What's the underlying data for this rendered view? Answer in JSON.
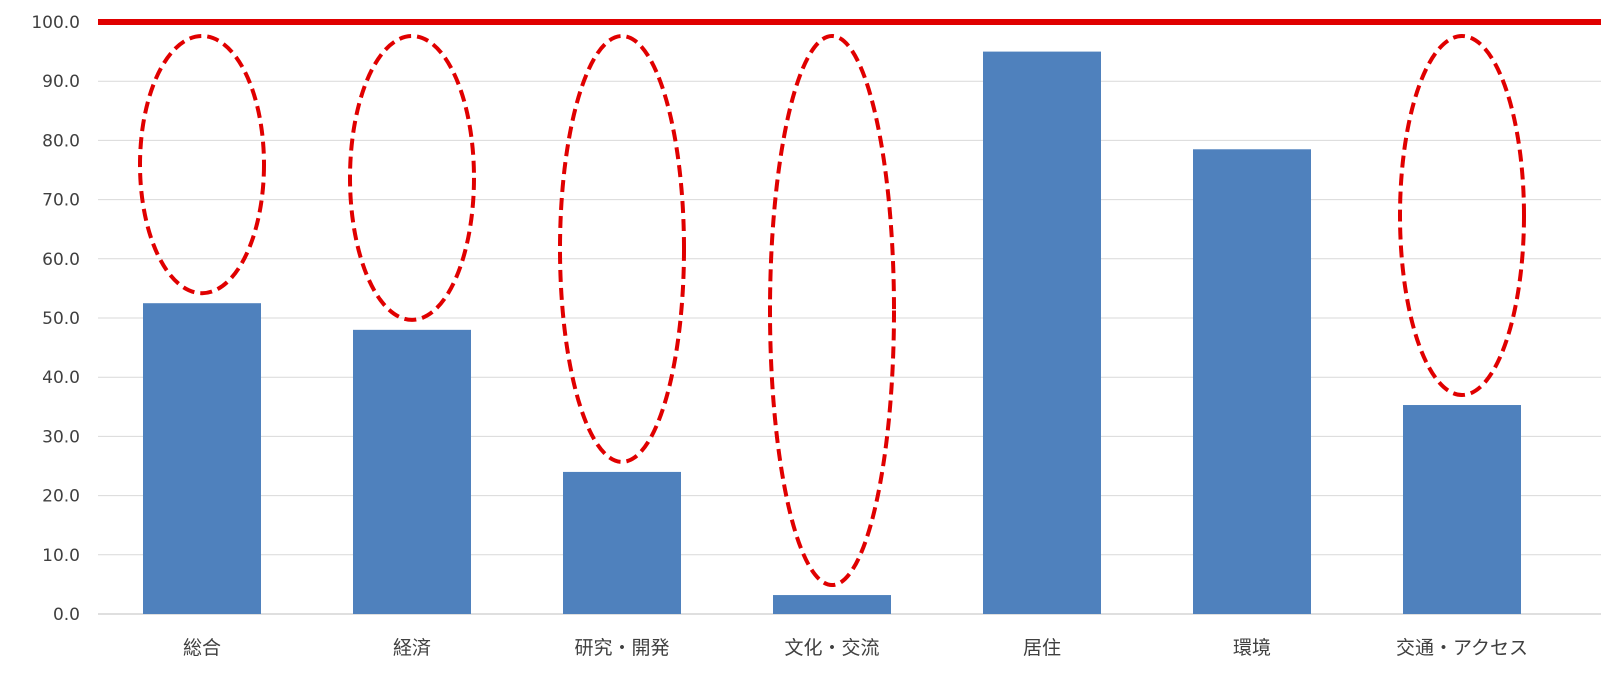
{
  "chart_data": {
    "type": "bar",
    "title": "",
    "xlabel": "",
    "ylabel": "",
    "categories": [
      "総合",
      "経済",
      "研究・開発",
      "文化・交流",
      "居住",
      "環境",
      "交通・アクセス"
    ],
    "values": [
      52.5,
      48.0,
      24.0,
      3.2,
      95.0,
      78.5,
      35.3
    ],
    "ylim": [
      0,
      100
    ],
    "yticks": [
      "0.0",
      "10.0",
      "20.0",
      "30.0",
      "40.0",
      "50.0",
      "60.0",
      "70.0",
      "80.0",
      "90.0",
      "100.0"
    ],
    "grid": true,
    "bar_color": "#4f81bd",
    "reference_line": {
      "value": 100,
      "color": "#e00000"
    },
    "gap_highlights": {
      "style": "dashed ellipse",
      "color": "#e00000",
      "categories": [
        "総合",
        "経済",
        "研究・開発",
        "文化・交流",
        "交通・アクセス"
      ]
    }
  }
}
